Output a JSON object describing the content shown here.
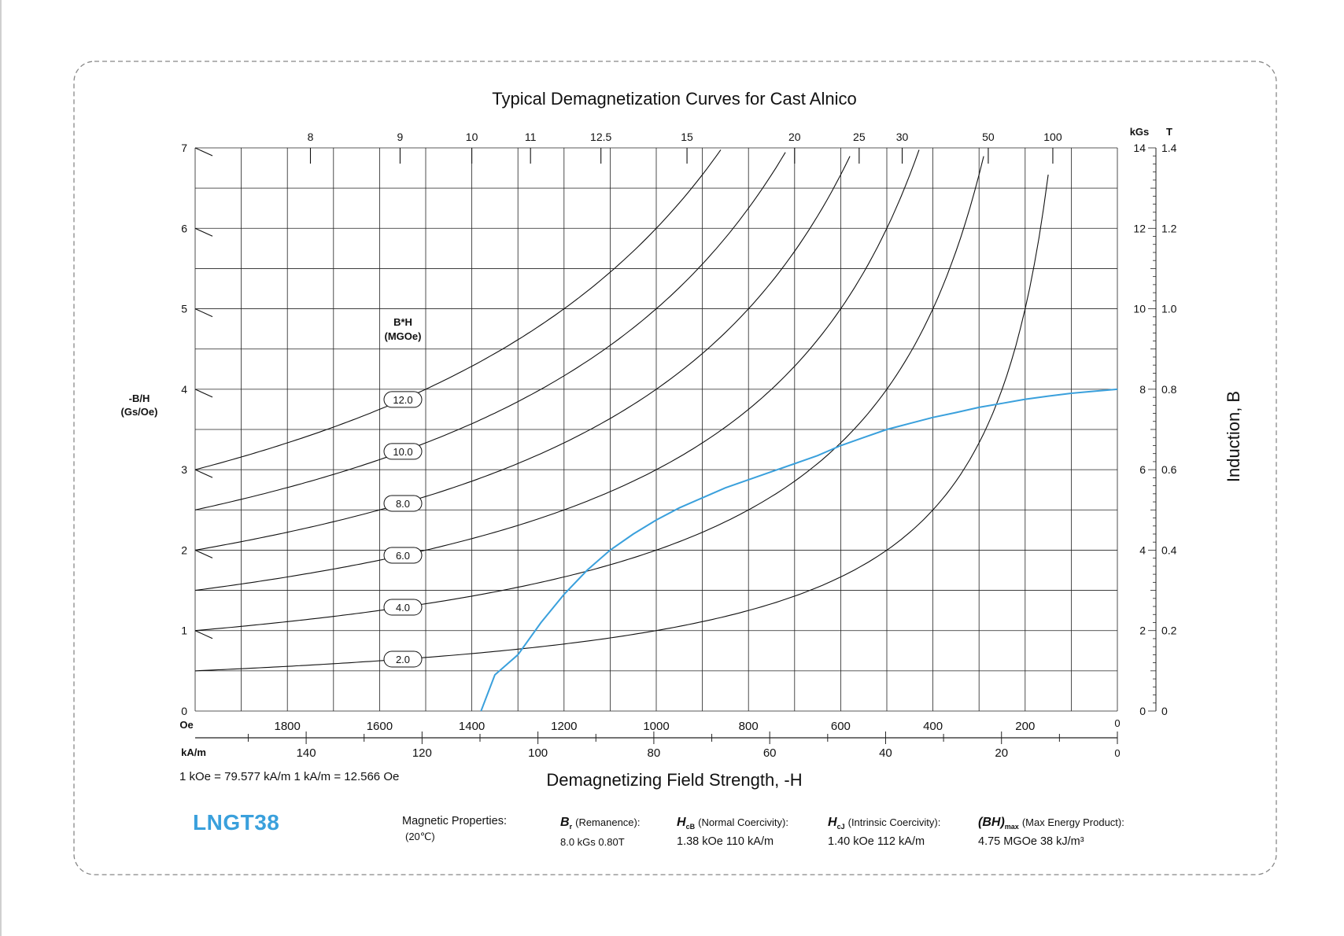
{
  "chart_data": {
    "type": "line",
    "title": "Typical Demagnetization Curves for Cast Alnico",
    "xlabel": "Demagnetizing Field Strength, -H",
    "x_units": [
      "Oe",
      "kA/m"
    ],
    "xlim_oe": [
      2000,
      0
    ],
    "x_ticks_oe": [
      "1800",
      "1600",
      "1400",
      "1200",
      "1000",
      "800",
      "600",
      "400",
      "200",
      "0"
    ],
    "x_ticks_kam": [
      "140",
      "120",
      "100",
      "80",
      "60",
      "40",
      "20",
      "0"
    ],
    "conversion": "1 kOe = 79.577 kA/m   1 kA/m = 12.566 Oe",
    "ylabel_left": "-B/H",
    "ylabel_left_unit": "(Gs/Oe)",
    "ylabel_right": "Induction, B",
    "y_units": [
      "kGs",
      "T"
    ],
    "ylim_kgs": [
      0,
      14
    ],
    "y_ticks_kgs": [
      "0",
      "2",
      "4",
      "6",
      "8",
      "10",
      "12",
      "14"
    ],
    "y_ticks_t": [
      "0",
      "0.2",
      "0.4",
      "0.6",
      "0.8",
      "1.0",
      "1.2",
      "1.4"
    ],
    "permeance_left": [
      "0",
      "1",
      "2",
      "3",
      "4",
      "5",
      "6",
      "7"
    ],
    "permeance_top": [
      "8",
      "9",
      "10",
      "11",
      "12.5",
      "15",
      "20",
      "25",
      "30",
      "50",
      "100"
    ],
    "bh_label": "B*H",
    "bh_unit": "(MGOe)",
    "bh_labels": [
      "12.0",
      "10.0",
      "8.0",
      "6.0",
      "4.0",
      "2.0"
    ],
    "bh_values_mgoe": [
      12,
      10,
      8,
      6,
      4,
      2
    ],
    "series": [
      {
        "color": "#3aa0dc",
        "x_oe": [
          1380,
          1350,
          1300,
          1250,
          1200,
          1150,
          1100,
          1050,
          1000,
          950,
          900,
          850,
          800,
          750,
          700,
          650,
          600,
          550,
          500,
          450,
          400,
          350,
          300,
          250,
          200,
          150,
          100,
          50,
          0
        ],
        "y_kgs": [
          0,
          0.9,
          1.4,
          2.2,
          2.9,
          3.5,
          4.0,
          4.4,
          4.75,
          5.05,
          5.3,
          5.55,
          5.75,
          5.95,
          6.15,
          6.35,
          6.6,
          6.8,
          7.0,
          7.15,
          7.3,
          7.42,
          7.55,
          7.65,
          7.75,
          7.83,
          7.9,
          7.95,
          8.0
        ]
      }
    ]
  },
  "footer": {
    "brand": "LNGT38",
    "props_title": "Magnetic Properties:",
    "props_temp": "(20℃)",
    "br_sym": "B",
    "br_sub": "r",
    "br_name": "(Remanence):",
    "br_val": "8.0 kGs   0.80T",
    "hcb_sym": "H",
    "hcb_sub": "cB",
    "hcb_name": "(Normal Coercivity):",
    "hcb_val": "1.38 kOe  110 kA/m",
    "hcj_sym": "H",
    "hcj_sub": "cJ",
    "hcj_name": "(Intrinsic Coercivity):",
    "hcj_val": "1.40 kOe  112 kA/m",
    "bh_sym": "(BH)",
    "bh_sub": "max",
    "bh_name": "(Max Energy Product):",
    "bh_val": "4.75 MGOe   38 kJ/m³"
  }
}
